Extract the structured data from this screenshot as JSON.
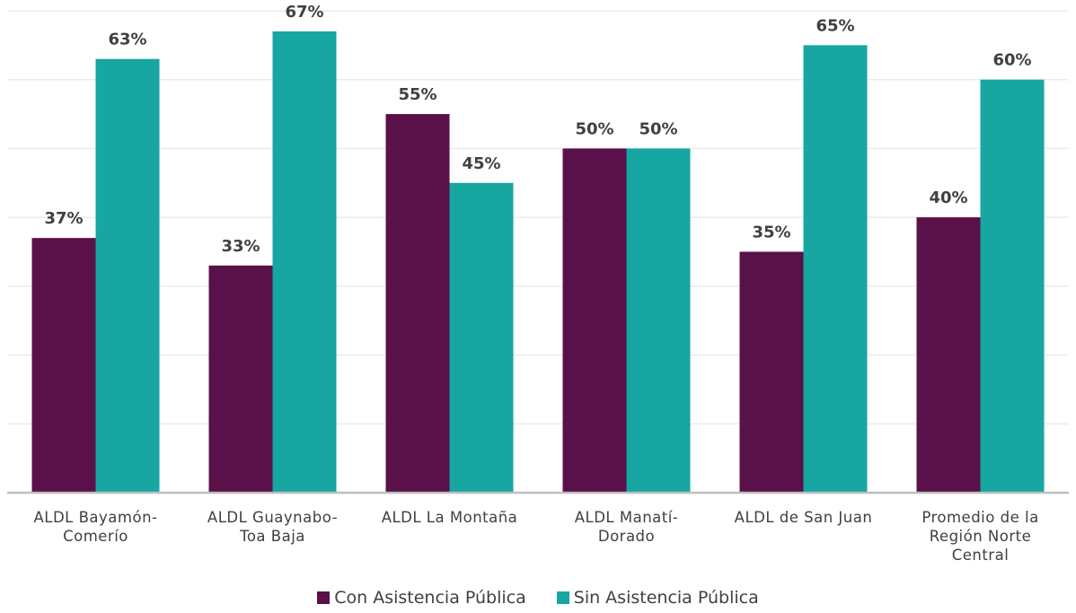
{
  "chart_data": {
    "type": "bar",
    "categories": [
      [
        "ALDL Bayamón-",
        "Comerío"
      ],
      [
        "ALDL Guaynabo-",
        "Toa Baja"
      ],
      [
        "ALDL La Montaña"
      ],
      [
        "ALDL Manatí-",
        "Dorado"
      ],
      [
        "ALDL de San Juan"
      ],
      [
        "Promedio de la",
        "Región Norte",
        "Central"
      ]
    ],
    "series": [
      {
        "name": "Con Asistencia Pública",
        "values": [
          37,
          33,
          55,
          50,
          35,
          40
        ],
        "labels": [
          "37%",
          "33%",
          "55%",
          "50%",
          "35%",
          "40%"
        ],
        "color": "#5a1048"
      },
      {
        "name": "Sin Asistencia Pública",
        "values": [
          63,
          67,
          45,
          50,
          65,
          60
        ],
        "labels": [
          "63%",
          "67%",
          "45%",
          "50%",
          "65%",
          "60%"
        ],
        "color": "#17a6a2"
      }
    ],
    "ylim": [
      0,
      70
    ],
    "grid": true,
    "legend": "bottom",
    "axis_color": "#bfbfbf",
    "grid_color": "#ebebeb",
    "label_color": "#404040"
  }
}
